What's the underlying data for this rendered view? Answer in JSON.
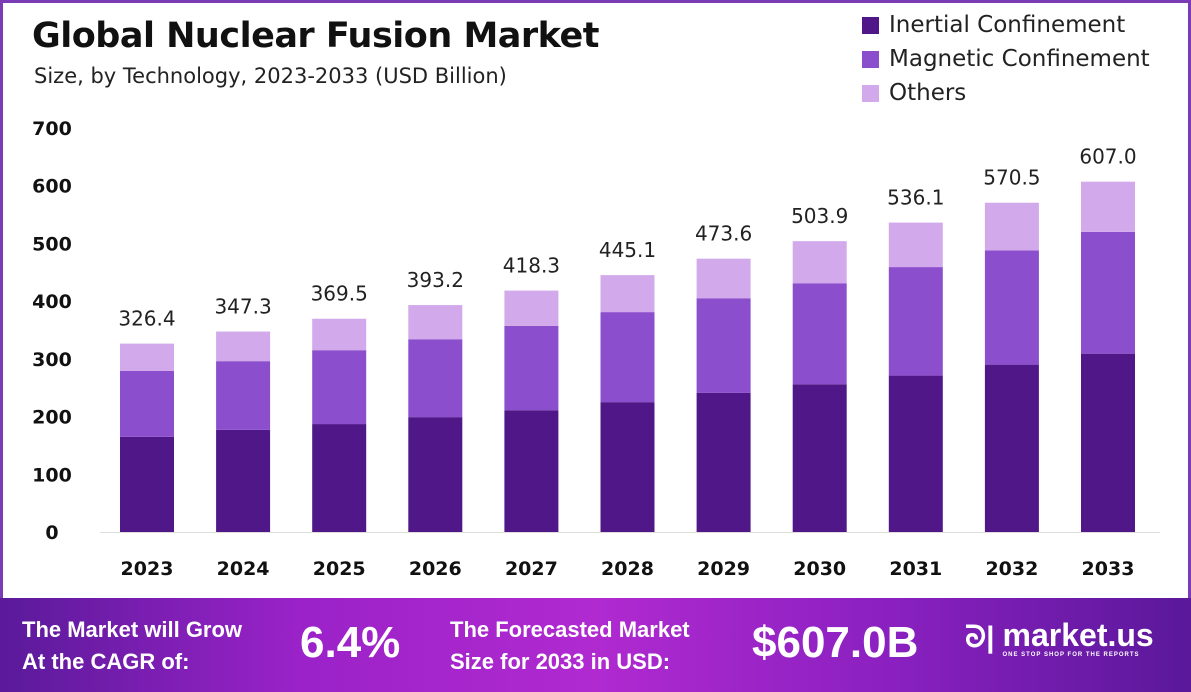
{
  "chart_data": {
    "type": "bar",
    "stacked": true,
    "title": "Global Nuclear Fusion Market",
    "subtitle": "Size, by Technology, 2023-2033 (USD Billion)",
    "categories": [
      "2023",
      "2024",
      "2025",
      "2026",
      "2027",
      "2028",
      "2029",
      "2030",
      "2031",
      "2032",
      "2033"
    ],
    "series": [
      {
        "name": "Inertial Confinement",
        "color": "#4f1787",
        "values": [
          165,
          177,
          187,
          199,
          211,
          225,
          241,
          256,
          271,
          290,
          309
        ]
      },
      {
        "name": "Magnetic Confinement",
        "color": "#8b4ecc",
        "values": [
          114,
          119,
          128,
          135,
          146,
          156,
          164,
          175,
          188,
          198,
          211
        ]
      },
      {
        "name": "Others",
        "color": "#d2a9ea",
        "values": [
          47.4,
          51.3,
          54.5,
          59.2,
          61.3,
          64.1,
          68.6,
          72.9,
          77.1,
          82.5,
          87.0
        ]
      }
    ],
    "totals": [
      "326.4",
      "347.3",
      "369.5",
      "393.2",
      "418.3",
      "445.1",
      "473.6",
      "503.9",
      "536.1",
      "570.5",
      "607.0"
    ],
    "ylim": [
      0,
      700
    ],
    "yticks": [
      "0",
      "100",
      "200",
      "300",
      "400",
      "500",
      "600",
      "700"
    ],
    "grid": false,
    "legend": "top-right"
  },
  "footer": {
    "cagr_label_1": "The Market will Grow",
    "cagr_label_2": "At the CAGR of:",
    "cagr_value": "6.4%",
    "forecast_label_1": "The Forecasted Market",
    "forecast_label_2": "Size for 2033 in USD:",
    "forecast_value": "$607.0B",
    "brand": "market.us",
    "brand_tagline": "ONE STOP SHOP FOR THE REPORTS"
  }
}
